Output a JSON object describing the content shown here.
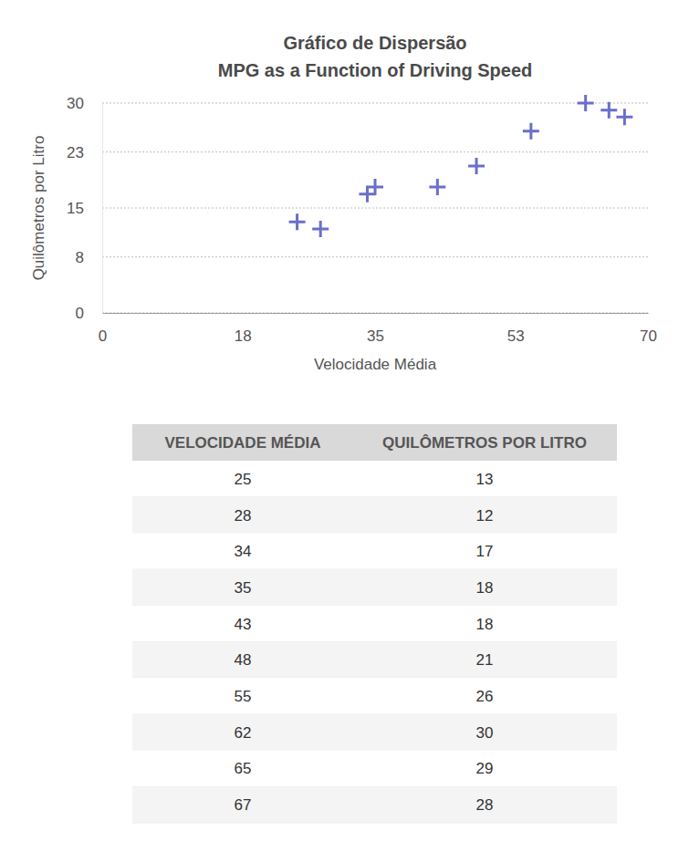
{
  "chart_data": {
    "type": "scatter",
    "title": "Gráfico de Dispersão",
    "subtitle": "MPG as a Function of Driving Speed",
    "x_label": "Velocidade Média",
    "y_label": "Quilômetros por Litro",
    "x": [
      25,
      28,
      34,
      35,
      43,
      48,
      55,
      62,
      65,
      67
    ],
    "values": [
      13,
      12,
      17,
      18,
      18,
      21,
      26,
      30,
      29,
      28
    ],
    "color": "#6a6fc9",
    "marker": "plus",
    "xlim": [
      0,
      70
    ],
    "xticks": [
      0,
      18,
      35,
      53,
      70
    ],
    "ylim": [
      0,
      30
    ],
    "yticks": [
      0,
      8,
      15,
      23,
      30
    ],
    "grid": true
  },
  "table": {
    "header": [
      "VELOCIDADE MÉDIA",
      "QUILÔMETROS POR LITRO"
    ],
    "rows": [
      [
        25,
        13
      ],
      [
        28,
        12
      ],
      [
        34,
        17
      ],
      [
        35,
        18
      ],
      [
        43,
        18
      ],
      [
        48,
        21
      ],
      [
        55,
        26
      ],
      [
        62,
        30
      ],
      [
        65,
        29
      ],
      [
        67,
        28
      ]
    ]
  }
}
